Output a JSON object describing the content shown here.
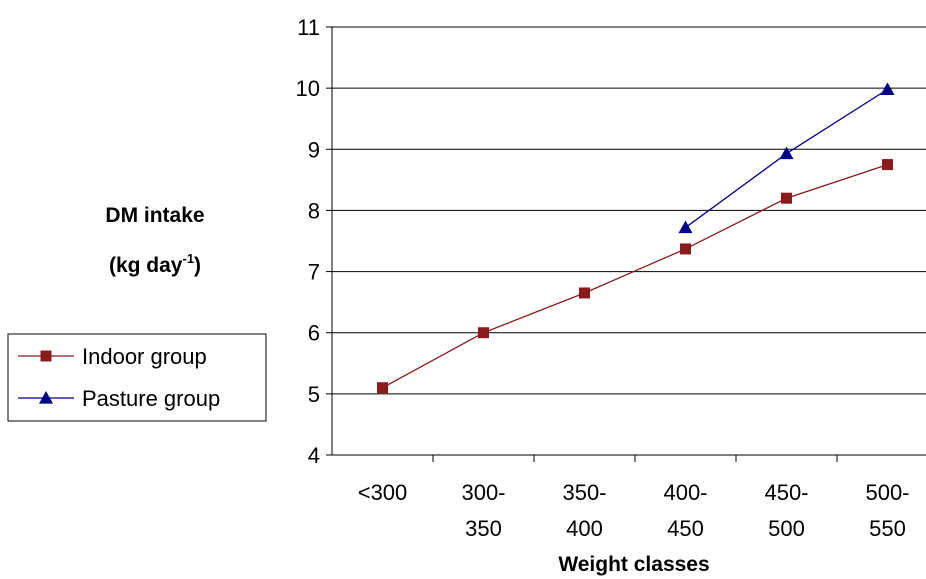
{
  "chart_data": {
    "type": "line",
    "categories": [
      [
        "<300"
      ],
      [
        "300-",
        "350"
      ],
      [
        "350-",
        "400"
      ],
      [
        "400-",
        "450"
      ],
      [
        "450-",
        "500"
      ],
      [
        "500-",
        "550"
      ]
    ],
    "series": [
      {
        "name": "Indoor group",
        "values": [
          5.1,
          6.0,
          6.65,
          7.37,
          8.2,
          8.75
        ],
        "color": "#8b1a1a",
        "marker": "square"
      },
      {
        "name": "Pasture group",
        "values": [
          null,
          null,
          null,
          7.72,
          8.93,
          9.98
        ],
        "color": "#00008b",
        "marker": "triangle"
      }
    ],
    "ylabel": [
      "DM intake",
      "(kg day",
      "-1",
      ")"
    ],
    "xlabel": "Weight classes",
    "ylim": [
      4,
      11
    ],
    "yticks": [
      4,
      5,
      6,
      7,
      8,
      9,
      10,
      11
    ],
    "grid": "horizontal",
    "legend_position": "left"
  }
}
